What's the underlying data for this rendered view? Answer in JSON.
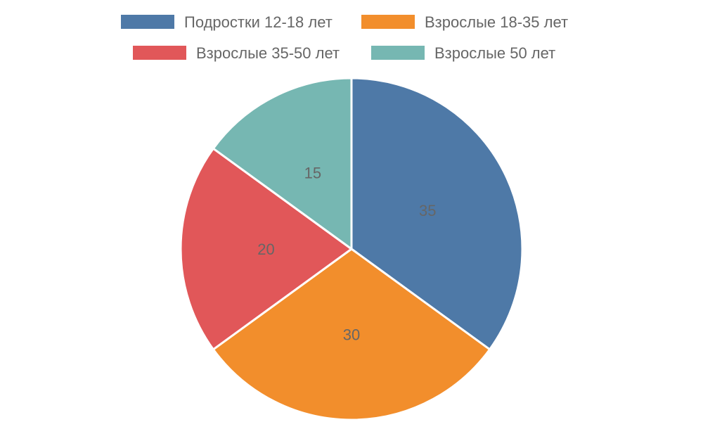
{
  "chart_data": {
    "type": "pie",
    "legend_position": "top",
    "categories": [
      "Подростки 12-18 лет",
      "Взрослые 18-35 лет",
      "Взрослые 35-50 лет",
      "Взрослые 50  лет"
    ],
    "values": [
      35,
      30,
      20,
      15
    ],
    "data_labels": [
      "35",
      "30",
      "20",
      "15"
    ],
    "colors": [
      "#4e79a7",
      "#f28e2c",
      "#e15759",
      "#76b7b2"
    ]
  }
}
